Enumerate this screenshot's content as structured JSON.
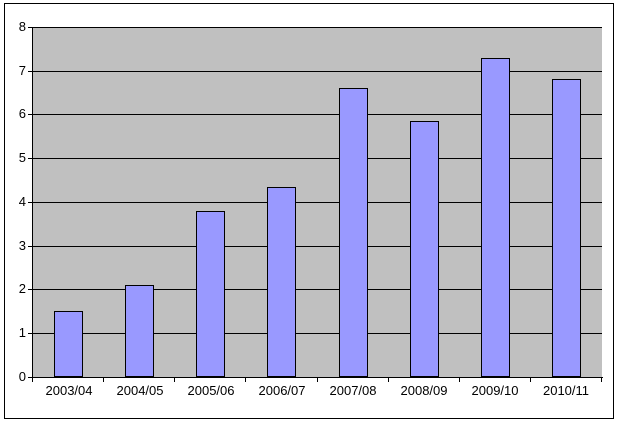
{
  "chart_data": {
    "type": "bar",
    "title": "",
    "xlabel": "",
    "ylabel": "",
    "categories": [
      "2003/04",
      "2004/05",
      "2005/06",
      "2006/07",
      "2007/08",
      "2008/09",
      "2009/10",
      "2010/11"
    ],
    "values": [
      1.5,
      2.1,
      3.8,
      4.35,
      6.6,
      5.85,
      7.3,
      6.8
    ],
    "ylim": [
      0,
      8
    ],
    "ytick_step": 1,
    "ytick_labels": [
      "0",
      "1",
      "2",
      "3",
      "4",
      "5",
      "6",
      "7",
      "8"
    ],
    "grid": true,
    "legend": false,
    "colors": {
      "bar_fill": "#9999FF",
      "bar_border": "#000000",
      "plot_bg": "#C0C0C0",
      "gridline": "#000000",
      "axis": "#000000",
      "tick": "#000000",
      "text": "#000000",
      "frame_border": "#000000",
      "background": "#FFFFFF"
    }
  }
}
